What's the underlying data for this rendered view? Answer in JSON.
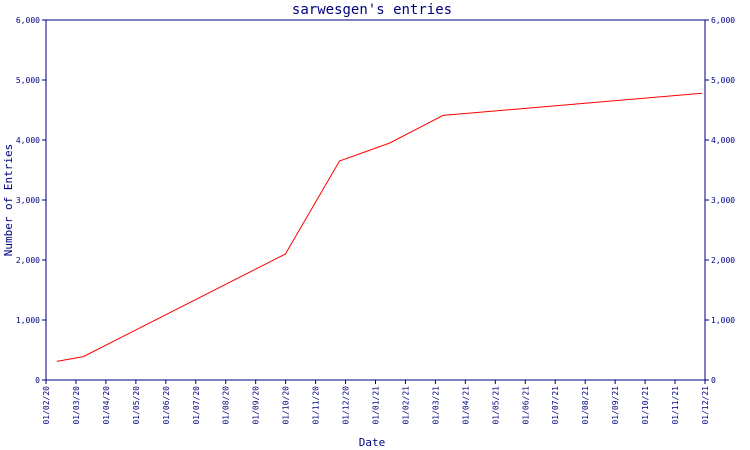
{
  "chart_data": {
    "type": "line",
    "title": "sarwesgen's entries",
    "xlabel": "Date",
    "ylabel": "Number of Entries",
    "ylim": [
      0,
      6000
    ],
    "y_ticks": [
      0,
      1000,
      2000,
      3000,
      4000,
      5000,
      6000
    ],
    "y_tick_labels": [
      "0",
      "1,000",
      "2,000",
      "3,000",
      "4,000",
      "5,000",
      "6,000"
    ],
    "right_axis": true,
    "grid": false,
    "legend": "none",
    "x_ticks": [
      "01/02/20",
      "01/03/20",
      "01/04/20",
      "01/05/20",
      "01/06/20",
      "01/07/20",
      "01/08/20",
      "01/09/20",
      "01/10/20",
      "01/11/20",
      "01/12/20",
      "01/01/21",
      "01/02/21",
      "01/03/21",
      "01/04/21",
      "01/05/21",
      "01/06/21",
      "01/07/21",
      "01/08/21",
      "01/09/21",
      "01/10/21",
      "01/11/21",
      "01/12/21"
    ],
    "series": [
      {
        "color": "#ff0000",
        "x": [
          "2020-02-12",
          "2020-03-10",
          "2020-10-01",
          "2020-11-25",
          "2021-01-15",
          "2021-03-10",
          "2021-11-28"
        ],
        "y": [
          310,
          390,
          2100,
          3650,
          3950,
          4410,
          4780
        ]
      }
    ]
  }
}
